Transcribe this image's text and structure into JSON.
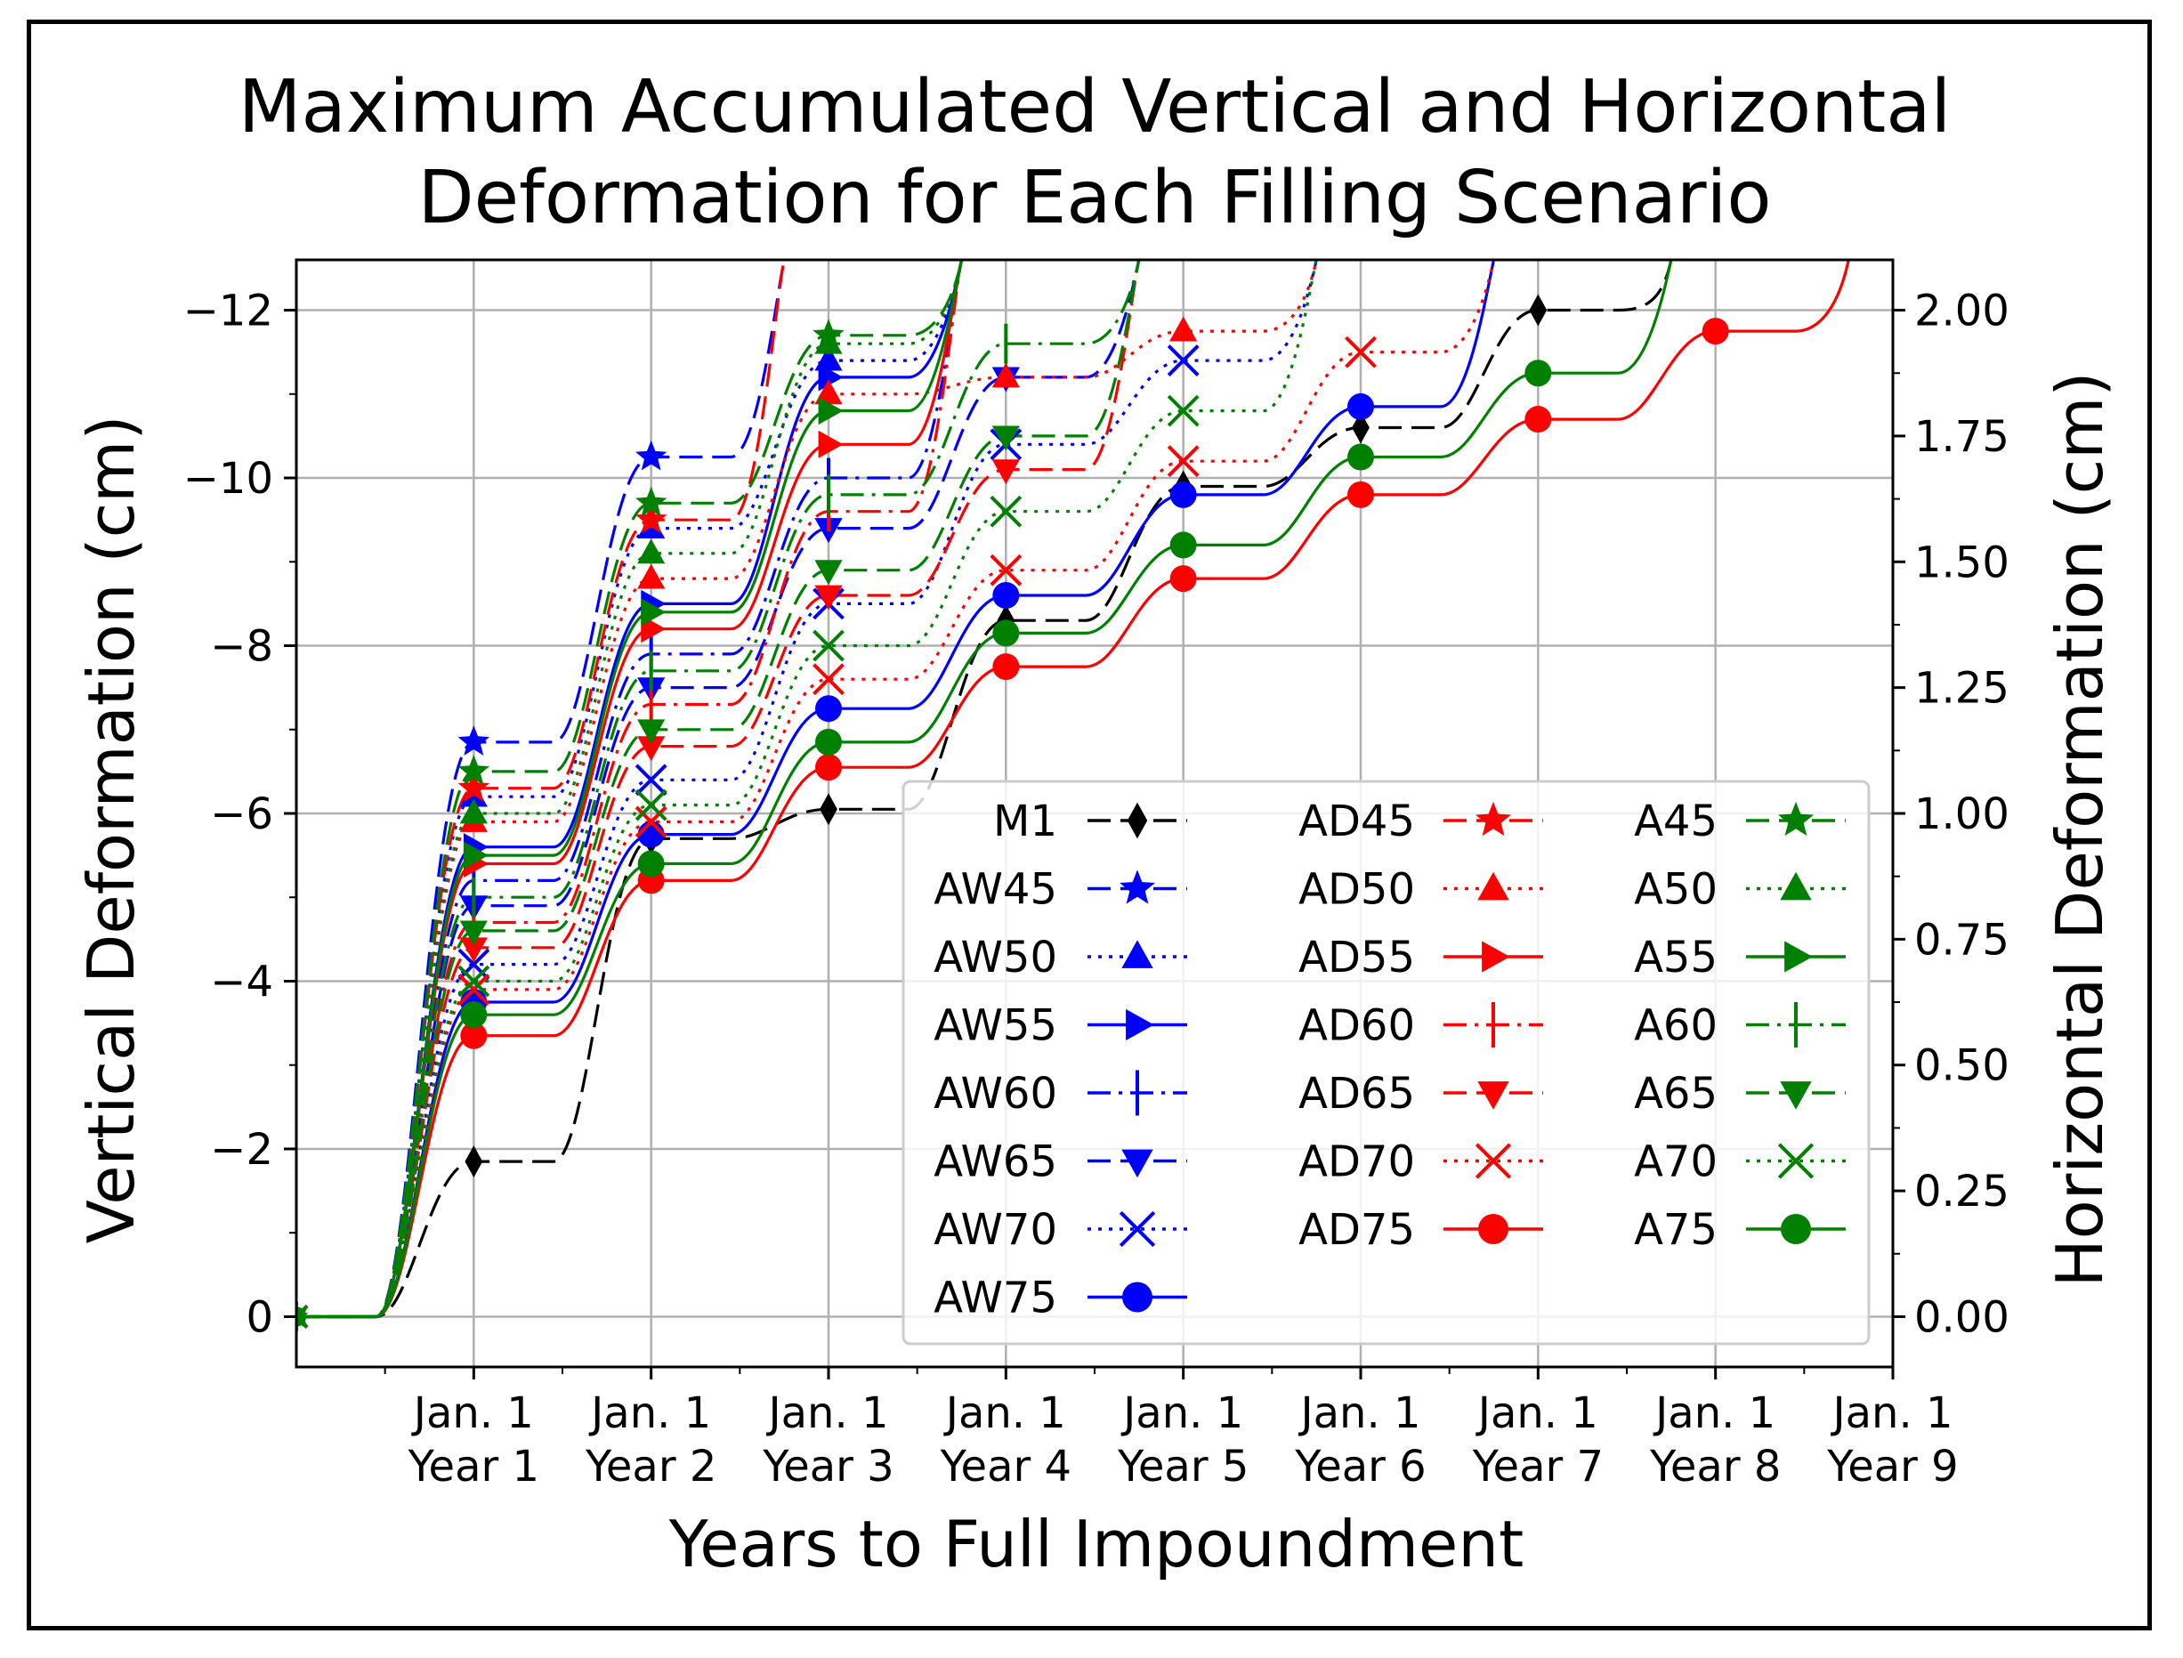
{
  "chart_data": {
    "type": "line",
    "title": "Maximum Accumulated Vertical and Horizontal Deformation for Each Filling Scenario",
    "title_lines": [
      "Maximum Accumulated Vertical and Horizontal",
      "Deformation for Each Filling Scenario"
    ],
    "xlabel": "Years to Full Impoundment",
    "ylabel_left": "Vertical Deformation (cm)",
    "ylabel_right": "Horizontal Deformation (cm)",
    "xlim": [
      -1,
      8
    ],
    "ylim_left": [
      0.6,
      -12.6
    ],
    "ylim_right": [
      -0.1,
      2.1
    ],
    "yticks_left": [
      0,
      -2,
      -4,
      -6,
      -8,
      -10,
      -12
    ],
    "yticks_left_labels": [
      "0",
      "−2",
      "−4",
      "−6",
      "−8",
      "−10",
      "−12"
    ],
    "yticks_right": [
      0,
      0.25,
      0.5,
      0.75,
      1.0,
      1.25,
      1.5,
      1.75,
      2.0
    ],
    "yticks_right_labels": [
      "0.00",
      "0.25",
      "0.50",
      "0.75",
      "1.00",
      "1.25",
      "1.50",
      "1.75",
      "2.00"
    ],
    "xticks": [
      0,
      1,
      2,
      3,
      4,
      5,
      6,
      7,
      8
    ],
    "xtick_labels": [
      [
        "Jan. 1",
        "Year 1"
      ],
      [
        "Jan. 1",
        "Year 2"
      ],
      [
        "Jan. 1",
        "Year 3"
      ],
      [
        "Jan. 1",
        "Year 4"
      ],
      [
        "Jan. 1",
        "Year 5"
      ],
      [
        "Jan. 1",
        "Year 6"
      ],
      [
        "Jan. 1",
        "Year 7"
      ],
      [
        "Jan. 1",
        "Year 8"
      ],
      [
        "Jan. 1",
        "Year 9"
      ]
    ],
    "grid": true,
    "legend_position": "lower-right",
    "colors": {
      "M1": "#000000",
      "AW": "#0000ff",
      "AD": "#ff0000",
      "A": "#008000"
    },
    "series": [
      {
        "name": "M1",
        "color": "#000000",
        "dash": "dashed",
        "marker": "thin_diamond",
        "x": [
          -1,
          0,
          1,
          2,
          3,
          4,
          5,
          6
        ],
        "values": [
          0,
          -1.85,
          -5.7,
          -6.05,
          -8.3,
          -9.9,
          -10.6,
          -12
        ]
      },
      {
        "name": "AW45",
        "color": "#0000ff",
        "dash": "dashed",
        "marker": "star",
        "x": [
          -1,
          0,
          1
        ],
        "values": [
          0,
          -6.85,
          -10.25
        ]
      },
      {
        "name": "AW50",
        "color": "#0000ff",
        "dash": "dotted",
        "marker": "triangle_up",
        "x": [
          -1,
          0,
          1,
          2
        ],
        "values": [
          0,
          -6.2,
          -9.4,
          -11.4
        ]
      },
      {
        "name": "AW55",
        "color": "#0000ff",
        "dash": "solid",
        "marker": "triangle_right",
        "x": [
          -1,
          0,
          1,
          2
        ],
        "values": [
          0,
          -5.6,
          -8.5,
          -11.2
        ]
      },
      {
        "name": "AW60",
        "color": "#0000ff",
        "dash": "dashdot",
        "marker": "vline",
        "x": [
          -1,
          0,
          1,
          2
        ],
        "values": [
          0,
          -5.2,
          -7.9,
          -10.0
        ]
      },
      {
        "name": "AW65",
        "color": "#0000ff",
        "dash": "dashed",
        "marker": "triangle_down",
        "x": [
          -1,
          0,
          1,
          2,
          3
        ],
        "values": [
          0,
          -4.9,
          -7.5,
          -9.4,
          -11.2
        ]
      },
      {
        "name": "AW70",
        "color": "#0000ff",
        "dash": "dotted",
        "marker": "x",
        "x": [
          -1,
          0,
          1,
          2,
          3,
          4
        ],
        "values": [
          0,
          -4.2,
          -6.4,
          -8.5,
          -10.4,
          -11.4
        ]
      },
      {
        "name": "AW75",
        "color": "#0000ff",
        "dash": "solid",
        "marker": "circle",
        "x": [
          -1,
          0,
          1,
          2,
          3,
          4,
          5
        ],
        "values": [
          0,
          -3.75,
          -5.75,
          -7.25,
          -8.6,
          -9.8,
          -10.85
        ]
      },
      {
        "name": "AD45",
        "color": "#ff0000",
        "dash": "dashed",
        "marker": "star",
        "x": [
          -1,
          0,
          1
        ],
        "values": [
          0,
          -6.3,
          -9.5
        ]
      },
      {
        "name": "AD50",
        "color": "#ff0000",
        "dash": "dotted",
        "marker": "triangle_up",
        "x": [
          -1,
          0,
          1,
          2,
          3,
          4
        ],
        "values": [
          0,
          -5.9,
          -8.8,
          -11.0,
          -11.2,
          -11.75
        ]
      },
      {
        "name": "AD55",
        "color": "#ff0000",
        "dash": "solid",
        "marker": "triangle_right",
        "x": [
          -1,
          0,
          1,
          2
        ],
        "values": [
          0,
          -5.4,
          -8.2,
          -10.4
        ]
      },
      {
        "name": "AD60",
        "color": "#ff0000",
        "dash": "dashdot",
        "marker": "vline",
        "x": [
          -1,
          0,
          1,
          2
        ],
        "values": [
          0,
          -4.7,
          -7.3,
          -9.6
        ]
      },
      {
        "name": "AD65",
        "color": "#ff0000",
        "dash": "dashed",
        "marker": "triangle_down",
        "x": [
          -1,
          0,
          1,
          2,
          3
        ],
        "values": [
          0,
          -4.4,
          -6.8,
          -8.6,
          -10.1
        ]
      },
      {
        "name": "AD70",
        "color": "#ff0000",
        "dash": "dotted",
        "marker": "x",
        "x": [
          -1,
          0,
          1,
          2,
          3,
          4,
          5
        ],
        "values": [
          0,
          -3.9,
          -5.9,
          -7.6,
          -8.9,
          -10.2,
          -11.5
        ]
      },
      {
        "name": "AD75",
        "color": "#ff0000",
        "dash": "solid",
        "marker": "circle",
        "x": [
          -1,
          0,
          1,
          2,
          3,
          4,
          5,
          6,
          7
        ],
        "values": [
          0,
          -3.35,
          -5.2,
          -6.55,
          -7.75,
          -8.8,
          -9.8,
          -10.7,
          -11.75
        ]
      },
      {
        "name": "A45",
        "color": "#008000",
        "dash": "dashed",
        "marker": "star",
        "x": [
          -1,
          0,
          1,
          2
        ],
        "values": [
          0,
          -6.5,
          -9.7,
          -11.7
        ]
      },
      {
        "name": "A50",
        "color": "#008000",
        "dash": "dotted",
        "marker": "triangle_up",
        "x": [
          -1,
          0,
          1,
          2
        ],
        "values": [
          0,
          -6.0,
          -9.1,
          -11.6
        ]
      },
      {
        "name": "A55",
        "color": "#008000",
        "dash": "solid",
        "marker": "triangle_right",
        "x": [
          -1,
          0,
          1,
          2
        ],
        "values": [
          0,
          -5.5,
          -8.4,
          -10.8
        ]
      },
      {
        "name": "A60",
        "color": "#008000",
        "dash": "dashdot",
        "marker": "vline",
        "x": [
          -1,
          0,
          1,
          2,
          3
        ],
        "values": [
          0,
          -5.0,
          -7.7,
          -9.8,
          -11.6
        ]
      },
      {
        "name": "A65",
        "color": "#008000",
        "dash": "dashed",
        "marker": "triangle_down",
        "x": [
          -1,
          0,
          1,
          2,
          3
        ],
        "values": [
          0,
          -4.6,
          -7.0,
          -8.9,
          -10.5
        ]
      },
      {
        "name": "A70",
        "color": "#008000",
        "dash": "dotted",
        "marker": "x",
        "x": [
          -1,
          0,
          1,
          2,
          3,
          4
        ],
        "values": [
          0,
          -4.0,
          -6.1,
          -8.0,
          -9.6,
          -10.8
        ]
      },
      {
        "name": "A75",
        "color": "#008000",
        "dash": "solid",
        "marker": "circle",
        "x": [
          -1,
          0,
          1,
          2,
          3,
          4,
          5,
          6
        ],
        "values": [
          0,
          -3.6,
          -5.4,
          -6.85,
          -8.15,
          -9.2,
          -10.25,
          -11.25
        ]
      }
    ],
    "legend_columns": [
      [
        "M1",
        "AW45",
        "AW50",
        "AW55",
        "AW60",
        "AW65",
        "AW70",
        "AW75"
      ],
      [
        "AD45",
        "AD50",
        "AD55",
        "AD60",
        "AD65",
        "AD70",
        "AD75"
      ],
      [
        "A45",
        "A50",
        "A55",
        "A60",
        "A65",
        "A70",
        "A75"
      ]
    ]
  }
}
